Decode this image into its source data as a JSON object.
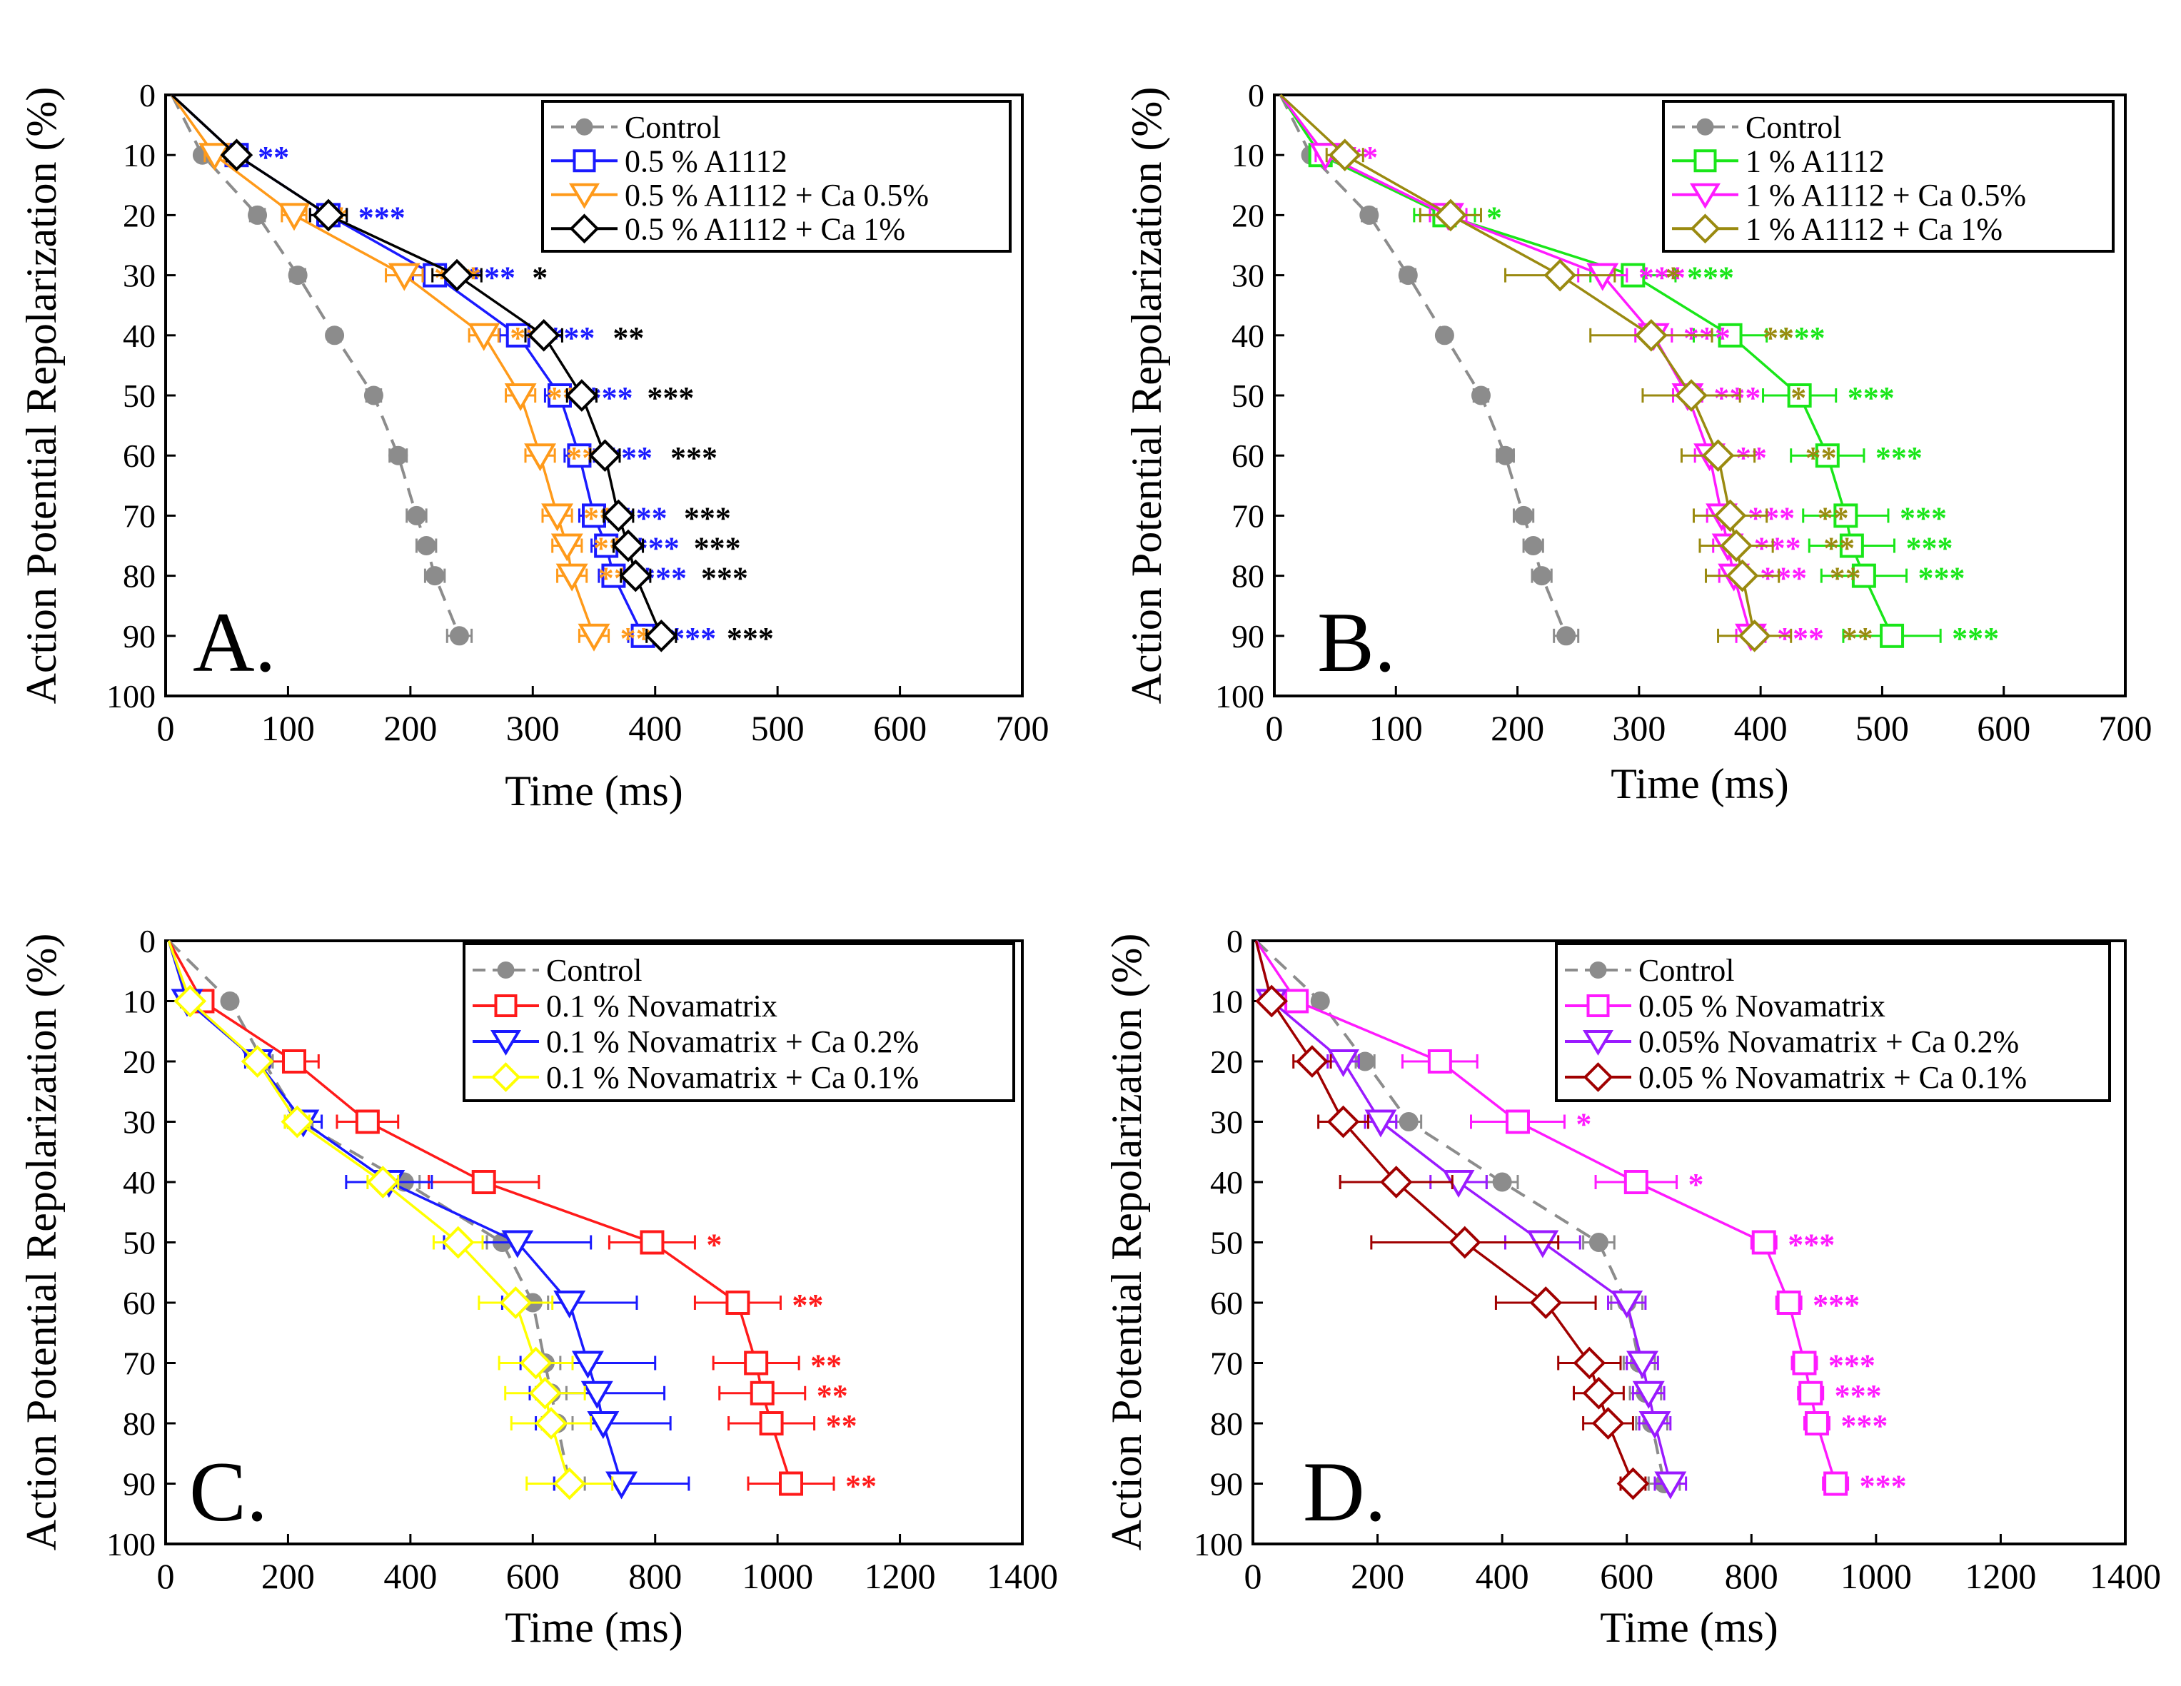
{
  "figure": {
    "colors": {
      "Control": "#8c8c8c",
      "blue": "#1a1aff",
      "orange": "#ff9a1a",
      "black": "#000000",
      "green": "#19e619",
      "magenta": "#ff1aff",
      "olive": "#9a8a10",
      "red": "#ff1a1a",
      "yellow": "#ffff00",
      "purple": "#9a1aff",
      "darkred": "#a00000"
    }
  },
  "chart_data": [
    {
      "type": "line",
      "panel": "A.",
      "xlabel": "Time (ms)",
      "ylabel": "Action Potential Repolarization (%)",
      "xlim": [
        0,
        700
      ],
      "ylim": [
        0,
        100
      ],
      "xticks": [
        0,
        100,
        200,
        300,
        400,
        500,
        600,
        700
      ],
      "yticks": [
        0,
        10,
        20,
        30,
        40,
        50,
        60,
        70,
        80,
        90,
        100
      ],
      "legend": "top-right",
      "series": [
        {
          "name": "Control",
          "color": "#8c8c8c",
          "marker": "circle",
          "dashed": true,
          "x": [
            5,
            30,
            75,
            108,
            138,
            170,
            190,
            205,
            213,
            220,
            240
          ],
          "y": [
            0,
            10,
            20,
            30,
            40,
            50,
            60,
            70,
            75,
            80,
            90
          ],
          "err": [
            0,
            4,
            6,
            6,
            5,
            6,
            7,
            8,
            8,
            8,
            10
          ],
          "stars": [
            "",
            "",
            "",
            "",
            "",
            "",
            "",
            "",
            "",
            "",
            ""
          ]
        },
        {
          "name": "0.5 % A1112",
          "color": "#1a1aff",
          "marker": "square",
          "dashed": false,
          "x": [
            5,
            58,
            133,
            220,
            288,
            322,
            338,
            350,
            360,
            366,
            390
          ],
          "y": [
            0,
            10,
            20,
            30,
            40,
            50,
            60,
            70,
            75,
            80,
            90
          ],
          "err": [
            0,
            8,
            15,
            18,
            15,
            12,
            12,
            12,
            12,
            12,
            12
          ],
          "stars": [
            "",
            "**",
            "***",
            "***",
            "***",
            "***",
            "***",
            "***",
            "***",
            "***",
            "***"
          ]
        },
        {
          "name": "0.5 % A1112 + Ca 0.5%",
          "color": "#ff9a1a",
          "marker": "tri",
          "dashed": false,
          "x": [
            5,
            40,
            105,
            195,
            260,
            290,
            306,
            320,
            328,
            332,
            350
          ],
          "y": [
            0,
            10,
            20,
            30,
            40,
            50,
            60,
            70,
            75,
            80,
            90
          ],
          "err": [
            0,
            8,
            10,
            15,
            12,
            12,
            12,
            12,
            12,
            12,
            12
          ],
          "stars": [
            "",
            "",
            "**",
            "***",
            "***",
            "***",
            "***",
            "***",
            "***",
            "***",
            "***"
          ]
        },
        {
          "name": "0.5 % A1112 + Ca 1%",
          "color": "#000000",
          "marker": "diamond",
          "dashed": false,
          "x": [
            5,
            58,
            133,
            238,
            309,
            340,
            359,
            370,
            378,
            384,
            405
          ],
          "y": [
            0,
            10,
            20,
            30,
            40,
            50,
            60,
            70,
            75,
            80,
            90
          ],
          "err": [
            0,
            8,
            15,
            20,
            15,
            12,
            12,
            12,
            12,
            12,
            12
          ],
          "stars": [
            "",
            "",
            "",
            "*",
            "**",
            "***",
            "***",
            "***",
            "***",
            "***",
            "***"
          ]
        }
      ]
    },
    {
      "type": "line",
      "panel": "B.",
      "xlabel": "Time (ms)",
      "ylabel": "Action Potential Repolarization (%)",
      "xlim": [
        0,
        700
      ],
      "ylim": [
        0,
        100
      ],
      "xticks": [
        0,
        100,
        200,
        300,
        400,
        500,
        600,
        700
      ],
      "yticks": [
        0,
        10,
        20,
        30,
        40,
        50,
        60,
        70,
        80,
        90,
        100
      ],
      "legend": "top-right",
      "series": [
        {
          "name": "Control",
          "color": "#8c8c8c",
          "marker": "circle",
          "dashed": true,
          "x": [
            5,
            30,
            78,
            110,
            140,
            170,
            190,
            205,
            213,
            220,
            240
          ],
          "y": [
            0,
            10,
            20,
            30,
            40,
            50,
            60,
            70,
            75,
            80,
            90
          ],
          "err": [
            0,
            4,
            6,
            6,
            5,
            6,
            7,
            8,
            8,
            8,
            10
          ],
          "stars": [
            "",
            "",
            "",
            "",
            "",
            "",
            "",
            "",
            "",
            "",
            ""
          ]
        },
        {
          "name": "1 % A1112",
          "color": "#19e619",
          "marker": "square",
          "dashed": false,
          "x": [
            5,
            38,
            140,
            295,
            375,
            432,
            455,
            470,
            475,
            485,
            508
          ],
          "y": [
            0,
            10,
            20,
            30,
            40,
            50,
            60,
            70,
            75,
            80,
            90
          ],
          "err": [
            0,
            8,
            25,
            35,
            30,
            30,
            30,
            35,
            35,
            35,
            40
          ],
          "stars": [
            "",
            "",
            "*",
            "***",
            "***",
            "***",
            "***",
            "***",
            "***",
            "***",
            "***"
          ]
        },
        {
          "name": "1 % A1112 + Ca 0.5%",
          "color": "#ff1aff",
          "marker": "tri",
          "dashed": false,
          "x": [
            5,
            42,
            143,
            270,
            312,
            340,
            358,
            368,
            373,
            378,
            392
          ],
          "y": [
            0,
            10,
            20,
            30,
            40,
            50,
            60,
            70,
            75,
            80,
            90
          ],
          "err": [
            0,
            8,
            15,
            20,
            15,
            12,
            12,
            12,
            12,
            12,
            12
          ],
          "stars": [
            "",
            "**",
            "",
            "***",
            "***",
            "***",
            "**",
            "***",
            "***",
            "***",
            "***"
          ]
        },
        {
          "name": "1 % A1112 + Ca 1%",
          "color": "#9a8a10",
          "marker": "diamond",
          "dashed": false,
          "x": [
            5,
            58,
            145,
            235,
            310,
            343,
            365,
            375,
            380,
            385,
            395
          ],
          "y": [
            0,
            10,
            20,
            30,
            40,
            50,
            60,
            70,
            75,
            80,
            90
          ],
          "err": [
            0,
            15,
            25,
            45,
            50,
            40,
            30,
            30,
            30,
            30,
            30
          ],
          "stars": [
            "",
            "",
            "",
            "*",
            "**",
            "*",
            "**",
            "**",
            "**",
            "**",
            "**"
          ]
        }
      ]
    },
    {
      "type": "line",
      "panel": "C.",
      "xlabel": "Time (ms)",
      "ylabel": "Action Potential Repolarization (%)",
      "xlim": [
        0,
        1400
      ],
      "ylim": [
        0,
        100
      ],
      "xticks": [
        0,
        200,
        400,
        600,
        800,
        1000,
        1200,
        1400
      ],
      "yticks": [
        0,
        10,
        20,
        30,
        40,
        50,
        60,
        70,
        80,
        90,
        100
      ],
      "legend": "top-right",
      "series": [
        {
          "name": "Control",
          "color": "#8c8c8c",
          "marker": "circle",
          "dashed": true,
          "x": [
            5,
            105,
            160,
            220,
            390,
            550,
            600,
            620,
            630,
            640,
            660
          ],
          "y": [
            0,
            10,
            20,
            30,
            40,
            50,
            60,
            70,
            75,
            80,
            90
          ],
          "err": [
            0,
            10,
            15,
            20,
            25,
            25,
            25,
            25,
            25,
            25,
            25
          ],
          "stars": [
            "",
            "",
            "",
            "",
            "",
            "",
            "",
            "",
            "",
            "",
            ""
          ]
        },
        {
          "name": "0.1 % Novamatrix",
          "color": "#ff1a1a",
          "marker": "square",
          "dashed": false,
          "x": [
            5,
            60,
            210,
            330,
            520,
            795,
            935,
            965,
            975,
            990,
            1022
          ],
          "y": [
            0,
            10,
            20,
            30,
            40,
            50,
            60,
            70,
            75,
            80,
            90
          ],
          "err": [
            0,
            15,
            40,
            50,
            90,
            70,
            70,
            70,
            70,
            70,
            70
          ],
          "stars": [
            "",
            "",
            "",
            "",
            "",
            "*",
            "**",
            "**",
            "**",
            "**",
            "**"
          ]
        },
        {
          "name": "0.1 % Novamatrix + Ca 0.2%",
          "color": "#1a1aff",
          "marker": "tri",
          "dashed": false,
          "x": [
            5,
            35,
            150,
            225,
            365,
            575,
            660,
            690,
            705,
            715,
            745
          ],
          "y": [
            0,
            10,
            20,
            30,
            40,
            50,
            60,
            70,
            75,
            80,
            90
          ],
          "err": [
            0,
            10,
            20,
            30,
            70,
            120,
            110,
            110,
            110,
            110,
            110
          ],
          "stars": [
            "",
            "",
            "",
            "",
            "",
            "",
            "",
            "",
            "",
            "",
            ""
          ]
        },
        {
          "name": "0.1 % Novamatrix + Ca 0.1%",
          "color": "#ffff00",
          "marker": "diamond",
          "dashed": false,
          "x": [
            5,
            40,
            150,
            215,
            355,
            478,
            572,
            605,
            620,
            630,
            660
          ],
          "y": [
            0,
            10,
            20,
            30,
            40,
            50,
            60,
            70,
            75,
            80,
            90
          ],
          "err": [
            0,
            10,
            15,
            20,
            25,
            40,
            60,
            60,
            65,
            65,
            70
          ],
          "stars": [
            "",
            "",
            "",
            "",
            "",
            "",
            "",
            "",
            "",
            "",
            ""
          ]
        }
      ]
    },
    {
      "type": "line",
      "panel": "D.",
      "xlabel": "Time (ms)",
      "ylabel": "Action Potential Repolarization (%)",
      "xlim": [
        0,
        1400
      ],
      "ylim": [
        0,
        100
      ],
      "xticks": [
        0,
        200,
        400,
        600,
        800,
        1000,
        1200,
        1400
      ],
      "yticks": [
        0,
        10,
        20,
        30,
        40,
        50,
        60,
        70,
        80,
        90,
        100
      ],
      "legend": "top-right",
      "series": [
        {
          "name": "Control",
          "color": "#8c8c8c",
          "marker": "circle",
          "dashed": true,
          "x": [
            5,
            108,
            180,
            250,
            400,
            555,
            600,
            620,
            630,
            640,
            660
          ],
          "y": [
            0,
            10,
            20,
            30,
            40,
            50,
            60,
            70,
            75,
            80,
            90
          ],
          "err": [
            0,
            10,
            15,
            20,
            25,
            25,
            25,
            25,
            25,
            25,
            25
          ],
          "stars": [
            "",
            "",
            "",
            "",
            "",
            "",
            "",
            "",
            "",
            "",
            ""
          ]
        },
        {
          "name": "0.05 % Novamatrix",
          "color": "#ff1aff",
          "marker": "square",
          "dashed": false,
          "x": [
            5,
            70,
            300,
            425,
            615,
            820,
            860,
            885,
            895,
            905,
            935
          ],
          "y": [
            0,
            10,
            20,
            30,
            40,
            50,
            60,
            70,
            75,
            80,
            90
          ],
          "err": [
            0,
            15,
            60,
            75,
            65,
            20,
            20,
            20,
            20,
            20,
            20
          ],
          "stars": [
            "",
            "",
            "",
            "*",
            "*",
            "***",
            "***",
            "***",
            "***",
            "***",
            "***"
          ]
        },
        {
          "name": "0.05% Novamatrix +  Ca 0.2%",
          "color": "#9a1aff",
          "marker": "tri",
          "dashed": false,
          "x": [
            5,
            30,
            145,
            205,
            330,
            465,
            600,
            625,
            635,
            645,
            670
          ],
          "y": [
            0,
            10,
            20,
            30,
            40,
            50,
            60,
            70,
            75,
            80,
            90
          ],
          "err": [
            0,
            10,
            25,
            25,
            45,
            60,
            30,
            25,
            25,
            25,
            25
          ],
          "stars": [
            "",
            "",
            "",
            "",
            "",
            "",
            "",
            "",
            "",
            "",
            ""
          ]
        },
        {
          "name": "0.05 % Novamatrix + Ca 0.1%",
          "color": "#a00000",
          "marker": "diamond",
          "dashed": false,
          "x": [
            5,
            30,
            95,
            145,
            230,
            340,
            470,
            540,
            555,
            570,
            610
          ],
          "y": [
            0,
            10,
            20,
            30,
            40,
            50,
            60,
            70,
            75,
            80,
            90
          ],
          "err": [
            0,
            10,
            30,
            40,
            90,
            150,
            80,
            50,
            40,
            40,
            20
          ],
          "stars": [
            "",
            "",
            "",
            "",
            "",
            "",
            "",
            "",
            "",
            "",
            ""
          ]
        }
      ]
    }
  ]
}
